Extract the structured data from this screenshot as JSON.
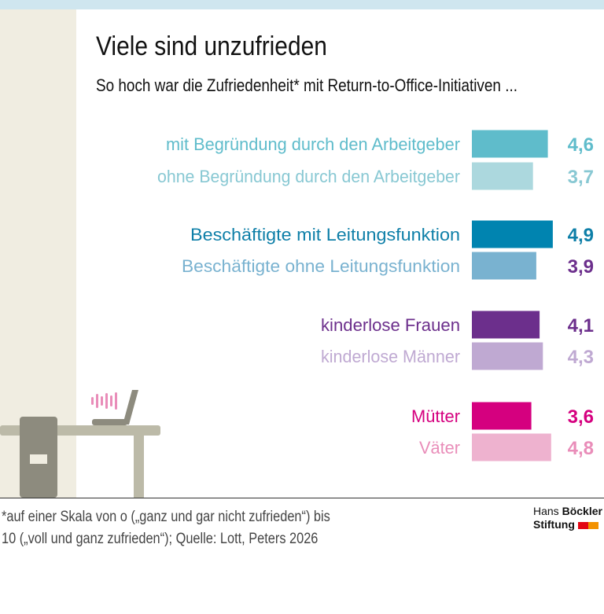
{
  "title": "Viele sind unzufrieden",
  "subtitle": "So hoch war die Zufriedenheit* mit Return-to-Office-Initiativen ...",
  "footnote": {
    "line1": "*auf einer Skala von o („ganz und gar nicht zufrieden“) bis",
    "line2": "10 („voll und ganz zufrieden“); Quelle: Lott, Peters 2026"
  },
  "logo": {
    "line1_light": "Hans",
    "line1_bold": "Böckler",
    "line2": "Stiftung",
    "colors": [
      "#e30613",
      "#f39200"
    ]
  },
  "chart_data": {
    "type": "bar",
    "orientation": "horizontal",
    "categories": [
      "mit Begründung durch den Arbeitgeber",
      "ohne Begründung durch den Arbeitgeber",
      "Beschäftigte mit Leitungsfunktion",
      "Beschäftigte ohne Leitungsfunktion",
      "kinderlose Frauen",
      "kinderlose Männer",
      "Mütter",
      "Väter"
    ],
    "values": [
      4.6,
      3.7,
      4.9,
      3.9,
      4.1,
      4.3,
      3.6,
      4.8
    ],
    "value_labels": [
      "4,6",
      "3,7",
      "4,9",
      "3,9",
      "4,1",
      "4,3",
      "3,6",
      "4,8"
    ],
    "bar_colors": [
      "#5fbccb",
      "#acd8de",
      "#0084b0",
      "#79b2d0",
      "#6c2f8c",
      "#bfa9d2",
      "#d5007f",
      "#eeb2cf"
    ],
    "label_colors": [
      "#5fbccb",
      "#88c8d3",
      "#0e7fa8",
      "#79b2d0",
      "#6c2f8c",
      "#bfa9d2",
      "#d5007f",
      "#e98db9"
    ],
    "value_colors": [
      "#5fbccb",
      "#88c8d3",
      "#0e7fa8",
      "#6c2f8c",
      "#6c2f8c",
      "#bfa9d2",
      "#d5007f",
      "#e98db9"
    ],
    "groups": [
      [
        0,
        1
      ],
      [
        2,
        3
      ],
      [
        4,
        5
      ],
      [
        6,
        7
      ]
    ],
    "xlim": [
      0,
      10
    ],
    "grid": false
  }
}
